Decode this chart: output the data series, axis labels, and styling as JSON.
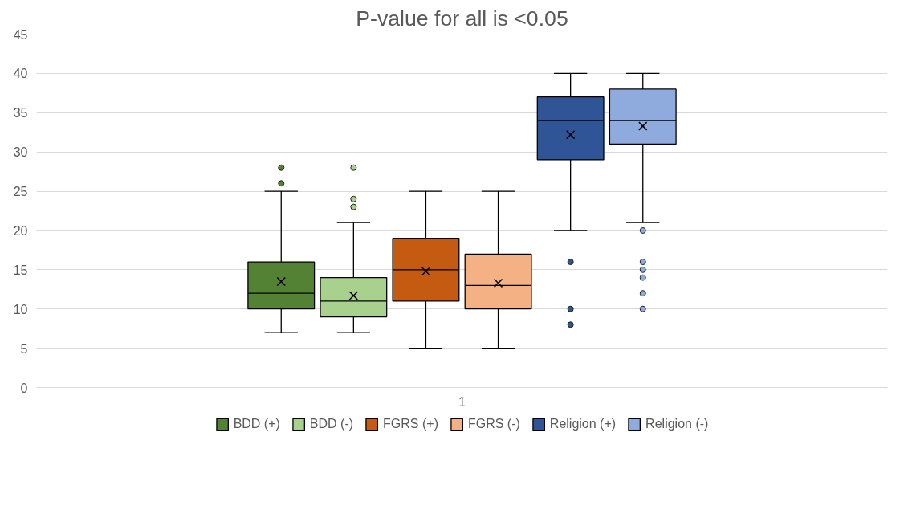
{
  "chart_data": {
    "type": "box",
    "title": "P-value for all is <0.05",
    "categories": [
      "1"
    ],
    "ylim": [
      0,
      45
    ],
    "yticks": [
      0,
      5,
      10,
      15,
      20,
      25,
      30,
      35,
      40,
      45
    ],
    "grid": "y",
    "legend": "bottom",
    "marker": "cross",
    "series": [
      {
        "name": "BDD (+)",
        "color": "#548235",
        "boxes": [
          {
            "low": 7,
            "q1": 10,
            "median": 12,
            "q3": 16,
            "high": 25,
            "mean": 13.5,
            "outliers": [
              26,
              28
            ]
          }
        ]
      },
      {
        "name": "BDD (-)",
        "color": "#a9d18e",
        "boxes": [
          {
            "low": 7,
            "q1": 9,
            "median": 11,
            "q3": 14,
            "high": 21,
            "mean": 11.7,
            "outliers": [
              23,
              24,
              28
            ]
          }
        ]
      },
      {
        "name": "FGRS (+)",
        "color": "#c55a11",
        "boxes": [
          {
            "low": 5,
            "q1": 11,
            "median": 15,
            "q3": 19,
            "high": 25,
            "mean": 14.8
          }
        ]
      },
      {
        "name": "FGRS (-)",
        "color": "#f4b183",
        "boxes": [
          {
            "low": 5,
            "q1": 10,
            "median": 13,
            "q3": 17,
            "high": 25,
            "mean": 13.3
          }
        ]
      },
      {
        "name": "Religion (+)",
        "color": "#2f5597",
        "boxes": [
          {
            "low": 20,
            "q1": 29,
            "median": 34,
            "q3": 37,
            "high": 40,
            "mean": 32.2,
            "outliers": [
              16,
              10,
              8
            ]
          }
        ]
      },
      {
        "name": "Religion (-)",
        "color": "#8faadc",
        "boxes": [
          {
            "low": 21,
            "q1": 31,
            "median": 34,
            "q3": 38,
            "high": 40,
            "mean": 33.3,
            "outliers": [
              20,
              16,
              15,
              14,
              12,
              10
            ]
          }
        ]
      }
    ]
  }
}
